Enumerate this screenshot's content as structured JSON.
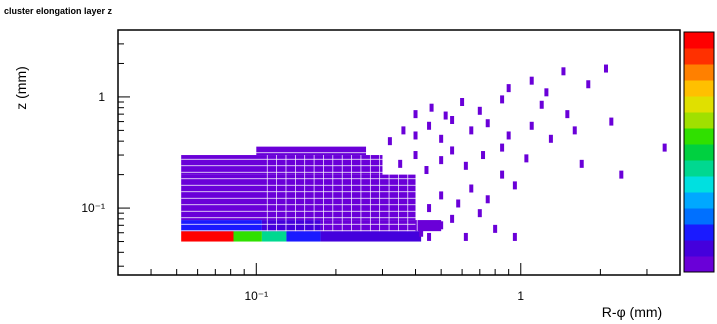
{
  "chart_data": {
    "type": "heatmap",
    "title": "cluster elongation layer z",
    "xlabel": "R-φ (mm)",
    "ylabel": "z (mm)",
    "xscale": "log",
    "yscale": "log",
    "xlim": [
      0.03,
      4
    ],
    "ylim": [
      0.025,
      4
    ],
    "x_ticks": [
      {
        "value": 0.1,
        "label": "10⁻¹"
      },
      {
        "value": 1,
        "label": "1"
      }
    ],
    "y_ticks": [
      {
        "value": 0.1,
        "label": "10⁻¹"
      },
      {
        "value": 1,
        "label": "1"
      }
    ],
    "grid": false,
    "colorbar": true,
    "colorbar_palette": [
      "#6a00d8",
      "#4400dc",
      "#1a1aff",
      "#0070ff",
      "#00a8ff",
      "#00e0e0",
      "#00d890",
      "#00d040",
      "#30e000",
      "#a0e000",
      "#e0e000",
      "#ffc000",
      "#ff8000",
      "#ff3000",
      "#ff0000"
    ],
    "cells": [
      {
        "x0": 0.052,
        "x1": 0.082,
        "y0": 0.05,
        "y1": 0.062,
        "level": 1.0
      },
      {
        "x0": 0.082,
        "x1": 0.105,
        "y0": 0.05,
        "y1": 0.062,
        "level": 0.58
      },
      {
        "x0": 0.105,
        "x1": 0.13,
        "y0": 0.05,
        "y1": 0.062,
        "level": 0.42
      },
      {
        "x0": 0.13,
        "x1": 0.175,
        "y0": 0.05,
        "y1": 0.062,
        "level": 0.14
      },
      {
        "x0": 0.175,
        "x1": 0.42,
        "y0": 0.05,
        "y1": 0.062,
        "level": 0.04
      },
      {
        "x0": 0.052,
        "x1": 0.105,
        "y0": 0.062,
        "y1": 0.078,
        "level": 0.12
      },
      {
        "x0": 0.105,
        "x1": 0.175,
        "y0": 0.062,
        "y1": 0.078,
        "level": 0.06
      },
      {
        "x0": 0.175,
        "x1": 0.5,
        "y0": 0.062,
        "y1": 0.078,
        "level": 0.02
      },
      {
        "x0": 0.052,
        "x1": 0.4,
        "y0": 0.078,
        "y1": 0.2,
        "level": 0.02
      },
      {
        "x0": 0.052,
        "x1": 0.3,
        "y0": 0.2,
        "y1": 0.3,
        "level": 0.01
      },
      {
        "x0": 0.1,
        "x1": 0.26,
        "y0": 0.3,
        "y1": 0.36,
        "level": 0.01
      }
    ],
    "scatter_cells": [
      [
        0.42,
        0.06
      ],
      [
        0.45,
        0.055
      ],
      [
        0.5,
        0.07
      ],
      [
        0.55,
        0.08
      ],
      [
        0.62,
        0.055
      ],
      [
        0.7,
        0.09
      ],
      [
        0.8,
        0.065
      ],
      [
        0.95,
        0.055
      ],
      [
        0.45,
        0.1
      ],
      [
        0.5,
        0.13
      ],
      [
        0.58,
        0.11
      ],
      [
        0.65,
        0.15
      ],
      [
        0.75,
        0.12
      ],
      [
        0.85,
        0.2
      ],
      [
        0.95,
        0.16
      ],
      [
        0.35,
        0.25
      ],
      [
        0.4,
        0.3
      ],
      [
        0.44,
        0.22
      ],
      [
        0.5,
        0.27
      ],
      [
        0.55,
        0.33
      ],
      [
        0.62,
        0.24
      ],
      [
        0.72,
        0.3
      ],
      [
        0.85,
        0.35
      ],
      [
        1.05,
        0.28
      ],
      [
        0.32,
        0.4
      ],
      [
        0.36,
        0.5
      ],
      [
        0.4,
        0.45
      ],
      [
        0.45,
        0.55
      ],
      [
        0.5,
        0.42
      ],
      [
        0.55,
        0.62
      ],
      [
        0.65,
        0.5
      ],
      [
        0.75,
        0.58
      ],
      [
        0.9,
        0.45
      ],
      [
        1.1,
        0.55
      ],
      [
        1.3,
        0.42
      ],
      [
        0.4,
        0.7
      ],
      [
        0.46,
        0.8
      ],
      [
        0.52,
        0.68
      ],
      [
        0.6,
        0.9
      ],
      [
        0.7,
        0.75
      ],
      [
        0.85,
        0.95
      ],
      [
        1.2,
        0.85
      ],
      [
        1.5,
        0.7
      ],
      [
        0.9,
        1.2
      ],
      [
        1.1,
        1.4
      ],
      [
        1.25,
        1.1
      ],
      [
        1.45,
        1.7
      ],
      [
        1.8,
        1.3
      ],
      [
        2.1,
        1.8
      ],
      [
        3.5,
        0.35
      ],
      [
        1.6,
        0.5
      ],
      [
        2.2,
        0.6
      ],
      [
        1.7,
        0.25
      ],
      [
        2.4,
        0.2
      ]
    ]
  }
}
